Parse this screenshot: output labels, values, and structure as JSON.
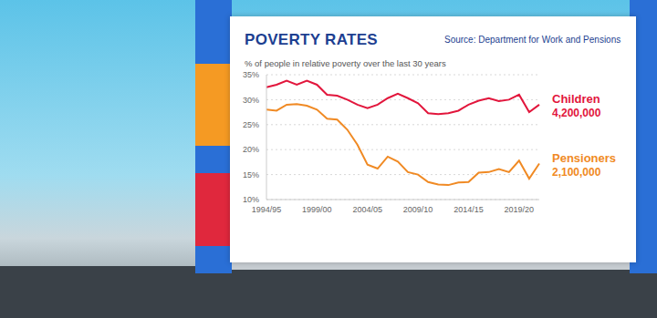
{
  "chart_data": {
    "type": "line",
    "title": "POVERTY RATES",
    "source": "Source: Department for Work and Pensions",
    "subtitle": "% of people in relative poverty over the last 30 years",
    "categories": [
      "1994/95",
      null,
      null,
      null,
      null,
      "1999/00",
      null,
      null,
      null,
      null,
      "2004/05",
      null,
      null,
      null,
      null,
      "2009/10",
      null,
      null,
      null,
      null,
      "2014/15",
      null,
      null,
      null,
      null,
      "2019/20",
      null,
      null
    ],
    "series": [
      {
        "name": "Children",
        "color": "#e2163c",
        "annotation": "4,200,000",
        "values": [
          32.5,
          33,
          33.8,
          33,
          33.8,
          33,
          31,
          30.8,
          30,
          29,
          28.3,
          29,
          30.3,
          31.2,
          30.3,
          29.3,
          27.3,
          27.1,
          27.3,
          27.8,
          29,
          29.8,
          30.3,
          29.7,
          30,
          31,
          27.5,
          29
        ]
      },
      {
        "name": "Pensioners",
        "color": "#f08a24",
        "annotation": "2,100,000",
        "values": [
          28,
          27.8,
          29,
          29.1,
          28.8,
          28,
          26.2,
          26,
          24,
          21,
          17,
          16.2,
          18.6,
          17.6,
          15.5,
          15,
          13.5,
          13,
          12.9,
          13.4,
          13.5,
          15.4,
          15.5,
          16.1,
          15.5,
          17.8,
          14.2,
          17.2
        ]
      }
    ],
    "ylim": [
      10,
      35
    ],
    "yticks": [
      {
        "value": 10,
        "label": "10%"
      },
      {
        "value": 15,
        "label": "15%"
      },
      {
        "value": 20,
        "label": "20%"
      },
      {
        "value": 25,
        "label": "25%"
      },
      {
        "value": 30,
        "label": "30%"
      },
      {
        "value": 35,
        "label": "35%"
      }
    ],
    "grid": true
  }
}
